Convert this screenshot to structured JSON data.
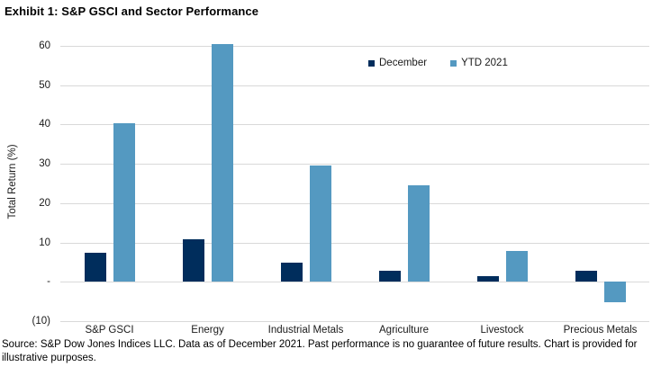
{
  "title": "Exhibit 1: S&P GSCI and Sector Performance",
  "source_note": "Source: S&P Dow Jones Indices LLC. Data as of December 2021. Past performance is no guarantee of future results. Chart is provided for illustrative purposes.",
  "chart_data": {
    "type": "bar",
    "title": "Exhibit 1: S&P GSCI and Sector Performance",
    "xlabel": "",
    "ylabel": "Total Return (%)",
    "ylim": [
      -10,
      60
    ],
    "ytick_values": [
      60,
      50,
      40,
      30,
      20,
      10,
      0,
      -10
    ],
    "ytick_labels": [
      "60",
      "50",
      "40",
      "30",
      "20",
      "10",
      "-",
      "(10)"
    ],
    "grid": true,
    "legend_position": "top-right-inside",
    "categories": [
      "S&P GSCI",
      "Energy",
      "Industrial Metals",
      "Agriculture",
      "Livestock",
      "Precious Metals"
    ],
    "series": [
      {
        "name": "December",
        "color": "#002D5C",
        "values": [
          7.4,
          10.8,
          4.8,
          2.8,
          1.4,
          2.8
        ]
      },
      {
        "name": "YTD 2021",
        "color": "#5499C1",
        "values": [
          40.4,
          60.5,
          29.5,
          24.6,
          7.8,
          -5.1
        ]
      }
    ]
  },
  "colors": {
    "december_bar": "#002D5C",
    "ytd_bar": "#5499C1",
    "gridline": "#D9D9D9",
    "text": "#1A1A1A"
  }
}
